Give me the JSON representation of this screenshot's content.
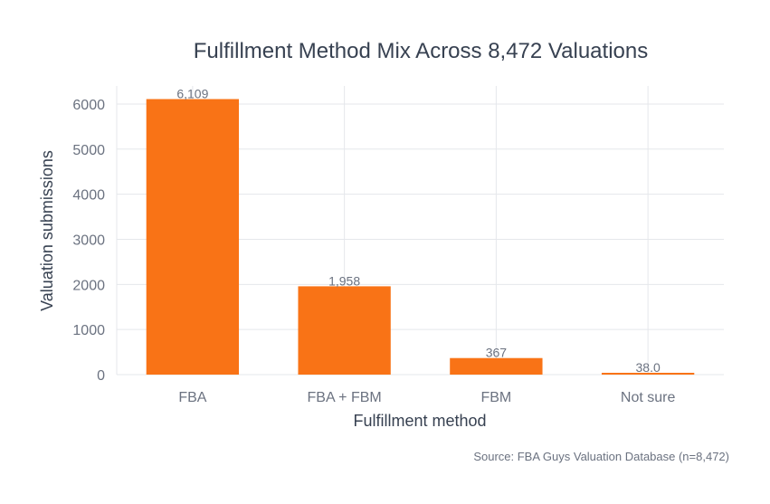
{
  "chart_data": {
    "type": "bar",
    "title": "Fulfillment Method Mix Across 8,472 Valuations",
    "xlabel": "Fulfillment method",
    "ylabel": "Valuation submissions",
    "categories": [
      "FBA",
      "FBA + FBM",
      "FBM",
      "Not sure"
    ],
    "values": [
      6109,
      1958,
      367,
      38
    ],
    "data_labels": [
      "6,109",
      "1,958",
      "367",
      "38.0"
    ],
    "ylim": [
      0,
      6400
    ],
    "yticks": [
      0,
      1000,
      2000,
      3000,
      4000,
      5000,
      6000
    ],
    "grid": true,
    "bar_color": "#f97316",
    "source": "Source: FBA Guys Valuation Database (n=8,472)"
  }
}
